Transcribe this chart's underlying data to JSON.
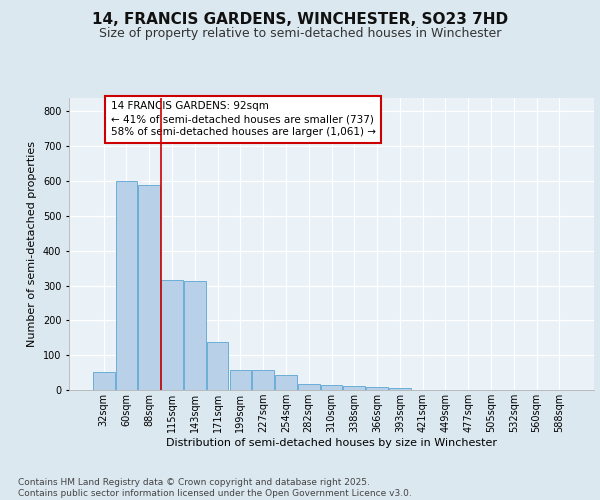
{
  "title_line1": "14, FRANCIS GARDENS, WINCHESTER, SO23 7HD",
  "title_line2": "Size of property relative to semi-detached houses in Winchester",
  "xlabel": "Distribution of semi-detached houses by size in Winchester",
  "ylabel": "Number of semi-detached properties",
  "categories": [
    "32sqm",
    "60sqm",
    "88sqm",
    "115sqm",
    "143sqm",
    "171sqm",
    "199sqm",
    "227sqm",
    "254sqm",
    "282sqm",
    "310sqm",
    "338sqm",
    "366sqm",
    "393sqm",
    "421sqm",
    "449sqm",
    "477sqm",
    "505sqm",
    "532sqm",
    "560sqm",
    "588sqm"
  ],
  "values": [
    52,
    601,
    590,
    315,
    313,
    138,
    58,
    58,
    42,
    17,
    14,
    11,
    10,
    7,
    0,
    0,
    0,
    0,
    0,
    0,
    0
  ],
  "bar_color": "#b8d0e8",
  "bar_edge_color": "#6aaed6",
  "vline_x_index": 2,
  "vline_color": "#cc0000",
  "annotation_text": "14 FRANCIS GARDENS: 92sqm\n← 41% of semi-detached houses are smaller (737)\n58% of semi-detached houses are larger (1,061) →",
  "annotation_box_color": "#ffffff",
  "annotation_box_edge_color": "#cc0000",
  "background_color": "#dce8f0",
  "plot_background_color": "#eaf2f8",
  "grid_color": "#ffffff",
  "footer_text": "Contains HM Land Registry data © Crown copyright and database right 2025.\nContains public sector information licensed under the Open Government Licence v3.0.",
  "ylim": [
    0,
    840
  ],
  "yticks": [
    0,
    100,
    200,
    300,
    400,
    500,
    600,
    700,
    800
  ],
  "title_fontsize": 11,
  "subtitle_fontsize": 9,
  "axis_label_fontsize": 8,
  "tick_fontsize": 7,
  "annotation_fontsize": 7.5,
  "footer_fontsize": 6.5
}
